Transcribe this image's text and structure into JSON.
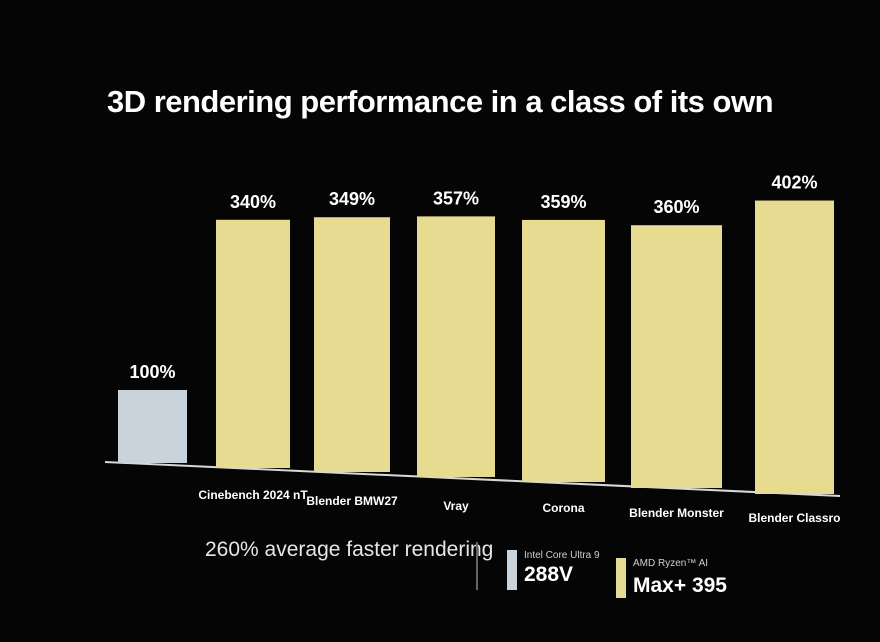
{
  "title": "3D rendering performance in a class of its own",
  "footer": "260% average faster rendering",
  "colors": {
    "baseline": "#c9d3dc",
    "amd": "#e6db91",
    "background": "#050505"
  },
  "legend": [
    {
      "line1": "Intel Core Ultra 9",
      "line2": "288V",
      "color": "#c9d3dc"
    },
    {
      "line1": "AMD Ryzen™ AI",
      "line2": "Max+ 395",
      "color": "#e6db91"
    }
  ],
  "chart_data": {
    "type": "bar",
    "categories": [
      "",
      "Cinebench 2024 nT",
      "Blender BMW27",
      "Vray",
      "Corona",
      "Blender Monster",
      "Blender Classro"
    ],
    "values": [
      100,
      340,
      349,
      357,
      359,
      360,
      402
    ],
    "labels": [
      "100%",
      "340%",
      "349%",
      "357%",
      "359%",
      "360%",
      "402%"
    ],
    "title": "3D rendering performance in a class of its own",
    "xlabel": "",
    "ylabel": "",
    "ylim": [
      0,
      420
    ],
    "grid": false
  }
}
